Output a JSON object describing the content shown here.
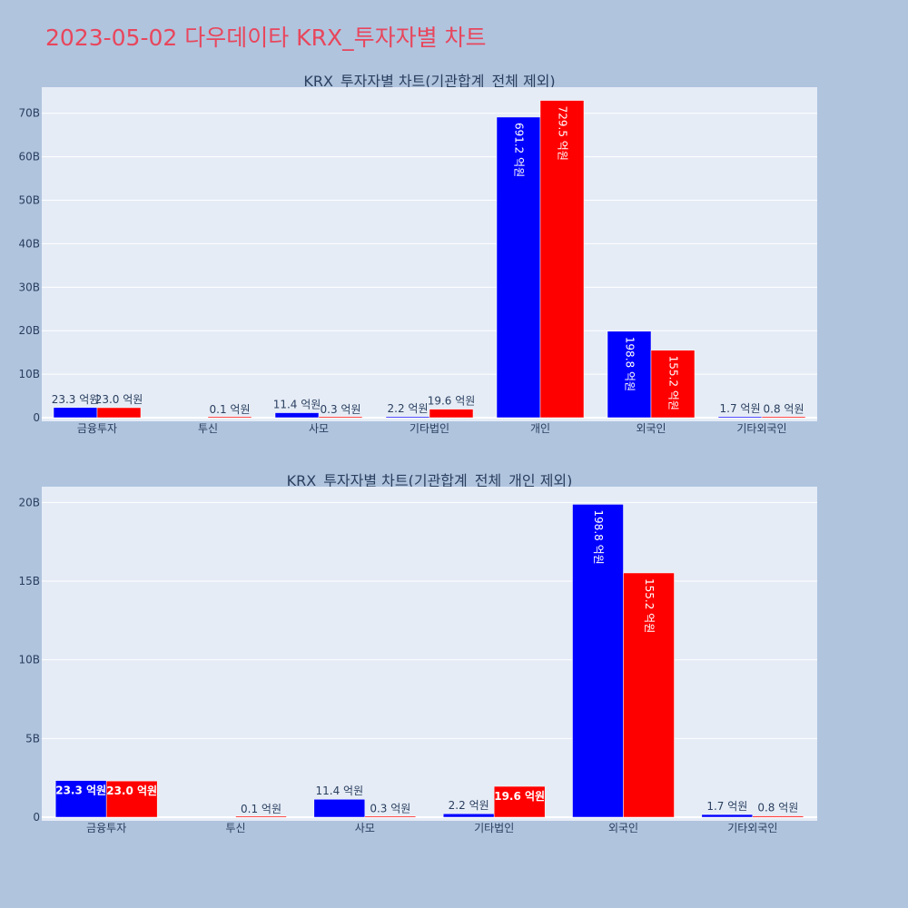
{
  "page": {
    "title": "2023-05-02 다우데이타 KRX_투자자별 차트"
  },
  "colors": {
    "background": "#b0c4de",
    "plot_bg": "#e5ecf6",
    "title": "#e8465c",
    "series_a": "#0000ff",
    "series_b": "#ff0000",
    "text": "#2a3f5f"
  },
  "chart_data": [
    {
      "type": "bar",
      "title": "KRX_투자자별 차트(기관합계_전체 제외)",
      "categories": [
        "금융투자",
        "투신",
        "사모",
        "기타법인",
        "개인",
        "외국인",
        "기타외국인"
      ],
      "series": [
        {
          "values": [
            23.3,
            0,
            11.4,
            2.2,
            691.2,
            198.8,
            1.7
          ],
          "labels": [
            "23.3 억원",
            "",
            "11.4 억원",
            "2.2 억원",
            "691.2 억원",
            "198.8 억원",
            "1.7 억원"
          ]
        },
        {
          "values": [
            23.0,
            0.1,
            0.3,
            19.6,
            729.5,
            155.2,
            0.8
          ],
          "labels": [
            "23.0 억원",
            "0.1 억원",
            "0.3 억원",
            "19.6 억원",
            "729.5 억원",
            "155.2 억원",
            "0.8 억원"
          ]
        }
      ],
      "unit": "억원",
      "ylim": [
        0,
        760
      ],
      "yticks": [
        0,
        100,
        200,
        300,
        400,
        500,
        600,
        700
      ],
      "ytick_labels": [
        "0",
        "10B",
        "20B",
        "30B",
        "40B",
        "50B",
        "60B",
        "70B"
      ],
      "grid": true,
      "legend": "none"
    },
    {
      "type": "bar",
      "title": "KRX_투자자별 차트(기관합계_전체_개인 제외)",
      "categories": [
        "금융투자",
        "투신",
        "사모",
        "기타법인",
        "외국인",
        "기타외국인"
      ],
      "series": [
        {
          "values": [
            23.3,
            0,
            11.4,
            2.2,
            198.8,
            1.7
          ],
          "labels": [
            "23.3 억원",
            "",
            "11.4 억원",
            "2.2 억원",
            "198.8 억원",
            "1.7 억원"
          ]
        },
        {
          "values": [
            23.0,
            0.1,
            0.3,
            19.6,
            155.2,
            0.8
          ],
          "labels": [
            "23.0 억원",
            "0.1 억원",
            "0.3 억원",
            "19.6 억원",
            "155.2 억원",
            "0.8 억원"
          ]
        }
      ],
      "unit": "억원",
      "ylim": [
        0,
        210
      ],
      "yticks": [
        0,
        50,
        100,
        150,
        200
      ],
      "ytick_labels": [
        "0",
        "5B",
        "10B",
        "15B",
        "20B"
      ],
      "grid": true,
      "legend": "none"
    }
  ]
}
